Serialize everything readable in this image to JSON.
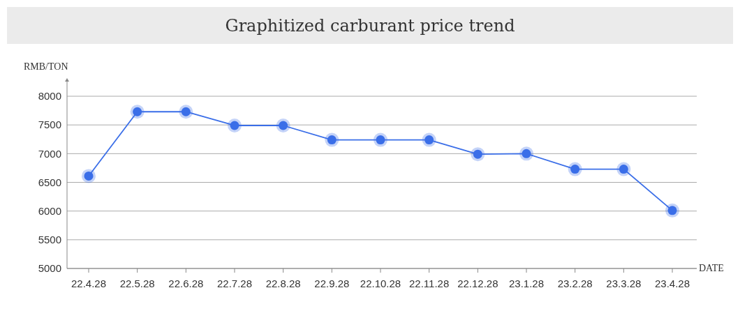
{
  "chart_data": {
    "type": "line",
    "title": "Graphitized carburant price trend",
    "ylabel": "RMB/TON",
    "xlabel": "DATE",
    "categories": [
      "22.4.28",
      "22.5.28",
      "22.6.28",
      "22.7.28",
      "22.8.28",
      "22.9.28",
      "22.10.28",
      "22.11.28",
      "22.12.28",
      "23.1.28",
      "23.2.28",
      "23.3.28",
      "23.4.28"
    ],
    "series": [
      {
        "color": "#3a6ee8",
        "values": [
          6610,
          7730,
          7730,
          7490,
          7490,
          7240,
          7240,
          7240,
          6990,
          7000,
          6730,
          6730,
          6010
        ]
      }
    ],
    "ylim": [
      5000,
      8000
    ],
    "yticks": [
      5000,
      5500,
      6000,
      6500,
      7000,
      7500,
      8000
    ],
    "grid": "y",
    "legend": false,
    "marker": "circle",
    "line_style": "solid"
  }
}
